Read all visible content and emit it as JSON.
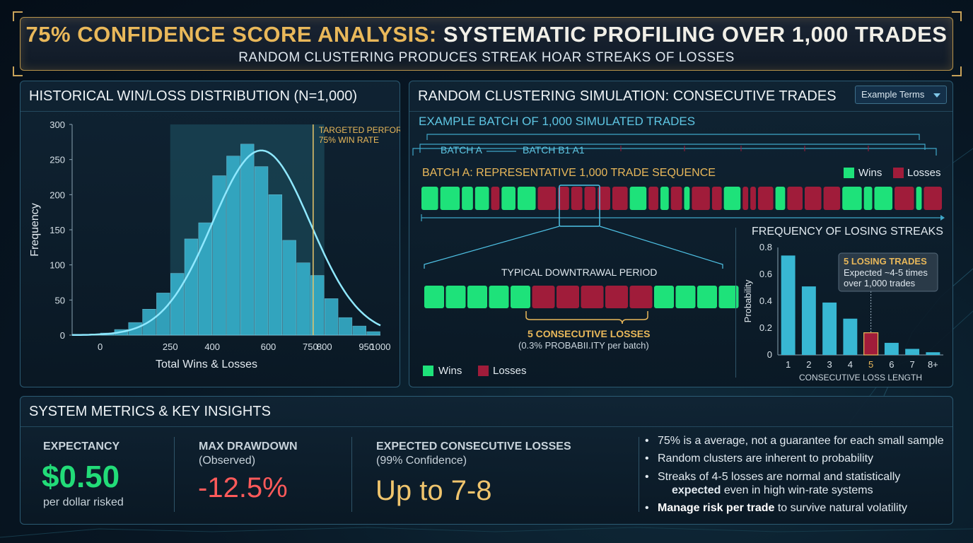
{
  "header": {
    "title_highlight": "75% CONFIDENCE SCORE ANALYSIS:",
    "title_rest": "SYSTEMATIC PROFILING OVER 1,000 TRADES",
    "subtitle": "RANDOM CLUSTERING PRODUCES STREAK HOAR STREAKS OF LOSSES"
  },
  "histogram_panel": {
    "title": "HISTORICAL WIN/LOSS DISTRIBUTION (N=1,000)",
    "target_label_line1": "TARGETED PERFORMANCE:",
    "target_label_line2": "75% WIN RATE"
  },
  "simulation_panel": {
    "title": "RANDOM CLUSTERING SIMULATION: CONSECUTIVE TRADES",
    "dropdown_label": "Example Terms",
    "batch_heading": "EXAMPLE BATCH OF  1,000 SIMULATED TRADES",
    "batch_tab_a": "BATCH A",
    "batch_tab_b": "BATCH B1 A1",
    "sequence_title": "BATCH A: REPRESENTATIVE 1,000 TRADE SEQUENCE",
    "legend_wins": "Wins",
    "legend_losses": "Losses",
    "zoom_title": "TYPICAL DOWNTRAWAL PERIOD",
    "zoom_note_title": "5 CONSECUTIVE LOSSES",
    "zoom_note_sub": "(0.3% PROBABII.ITY per batch)",
    "bottom_legend_wins": "Wins",
    "bottom_legend_losses": "Losses",
    "tooltip_title": "5 LOSING TRADES",
    "tooltip_line1": "Expected ~4-5 times",
    "tooltip_line2": "over 1,000 trades"
  },
  "metrics_panel": {
    "title": "SYSTEM METRICS & KEY INSIGHTS",
    "expectancy_label": "EXPECTANCY",
    "expectancy_value": "$0.50",
    "expectancy_sub": "per dollar risked",
    "drawdown_label": "MAX DRAWDOWN",
    "drawdown_sub": "(Observed)",
    "drawdown_value": "-12.5%",
    "consec_label": "EXPECTED CONSECUTIVE LOSSES",
    "consec_sub": "(99% Confidence)",
    "consec_value": "Up to 7-8",
    "bullet1": "75% is a average, not a guarantee for each small sample",
    "bullet2": "Random clusters are inherent to probability",
    "bullet3a": "Streaks of 4-5 losses are normal and statistically",
    "bullet3b_bold": "expected",
    "bullet3b_rest": " even in high win-rate systems",
    "bullet4_bold": "Manage risk per trade",
    "bullet4_rest": " to survive natural volatility"
  },
  "colors": {
    "win": "#1ee27a",
    "loss": "#a01c3a",
    "bar": "#38b7d3",
    "gold": "#e9b85a",
    "expectancy": "#22dc78",
    "drawdown": "#ff5a5a",
    "consec": "#efc46d"
  },
  "chart_data": [
    {
      "type": "bar",
      "title": "HISTORICAL WIN/LOSS DISTRIBUTION (N=1,000)",
      "xlabel": "Total Wins & Losses",
      "ylabel": "Frequency",
      "xlim": [
        -100,
        1000
      ],
      "ylim": [
        0,
        300
      ],
      "x_ticks": [
        "0",
        "250",
        "400",
        "600",
        "750",
        "800",
        "950",
        "1000"
      ],
      "y_ticks": [
        "0",
        "50",
        "100",
        "150",
        "200",
        "250",
        "300"
      ],
      "bin_width": 50,
      "bins_x": [
        0,
        50,
        100,
        150,
        200,
        250,
        300,
        350,
        400,
        450,
        500,
        550,
        600,
        650,
        700,
        750,
        800,
        850,
        900,
        950
      ],
      "values": [
        3,
        8,
        18,
        37,
        60,
        88,
        137,
        160,
        227,
        255,
        272,
        240,
        200,
        135,
        103,
        85,
        52,
        25,
        13,
        5
      ],
      "target_x": 760
    },
    {
      "type": "sequence",
      "title": "BATCH A: REPRESENTATIVE 1,000 TRADE SEQUENCE",
      "legend": [
        "Wins",
        "Losses"
      ],
      "sequence": [
        "W",
        "W",
        "W",
        "W",
        "L",
        "W",
        "W",
        "L",
        "L",
        "L",
        "L",
        "L",
        "L",
        "W",
        "L",
        "W",
        "L",
        "W",
        "L",
        "L",
        "W",
        "L",
        "L",
        "L",
        "W",
        "L",
        "L",
        "L",
        "W",
        "W",
        "W",
        "L",
        "W",
        "L"
      ]
    },
    {
      "type": "sequence",
      "title": "TYPICAL DOWNTRAWAL PERIOD",
      "sequence": [
        "W",
        "W",
        "W",
        "W",
        "W",
        "L",
        "L",
        "L",
        "L",
        "L",
        "W",
        "W",
        "W",
        "W"
      ]
    },
    {
      "type": "bar",
      "title": "FREQUENCY OF LOSING STREAKS",
      "xlabel": "CONSECUTIVE LOSS LENGTH",
      "ylabel": "Probability",
      "categories": [
        "1",
        "2",
        "3",
        "4",
        "5",
        "6",
        "7",
        "8+"
      ],
      "values": [
        0.74,
        0.51,
        0.39,
        0.27,
        0.165,
        0.09,
        0.045,
        0.02
      ],
      "highlight": "5",
      "ylim": [
        0,
        0.8
      ],
      "y_ticks": [
        "0",
        "0.2",
        "0.4",
        "0.6",
        "0.8"
      ]
    }
  ]
}
